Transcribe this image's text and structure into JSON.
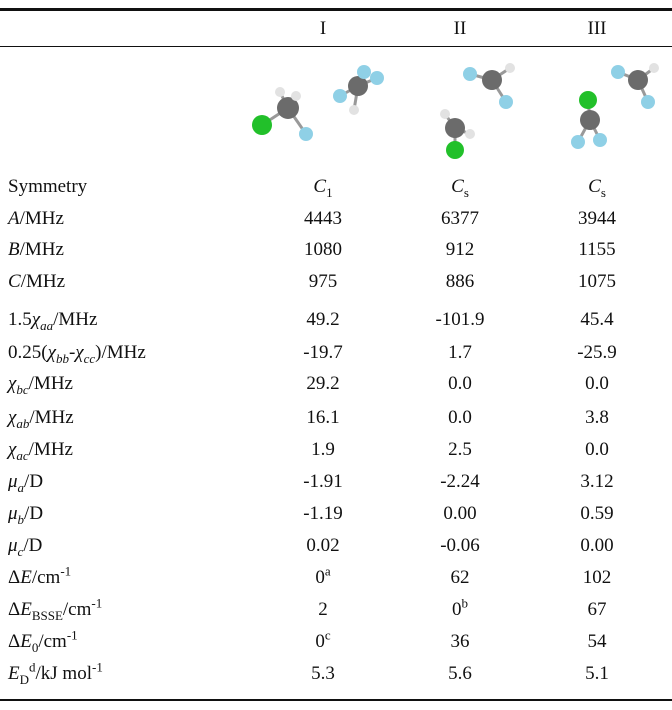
{
  "table": {
    "header": [
      "I",
      "II",
      "III"
    ],
    "rows": [
      {
        "label": [
          "Symmetry"
        ],
        "cells": [
          [
            "C",
            "1"
          ],
          [
            "C",
            "s"
          ],
          [
            "C",
            "s"
          ]
        ]
      },
      {
        "label": [
          "A",
          "/MHz"
        ],
        "cells": [
          "4443",
          "6377",
          "3944"
        ]
      },
      {
        "label": [
          "B",
          "/MHz"
        ],
        "cells": [
          "1080",
          "912",
          "1155"
        ]
      },
      {
        "label": [
          "C",
          "/MHz"
        ],
        "cells": [
          "975",
          "886",
          "1075"
        ]
      },
      {
        "label": [
          "1.5",
          "χ",
          "aa",
          "/MHz"
        ],
        "cells": [
          "49.2",
          "-101.9",
          "45.4"
        ]
      },
      {
        "label": [
          "0.25(",
          "χ",
          "bb",
          "-",
          "χ",
          "cc",
          ")/MHz"
        ],
        "cells": [
          "-19.7",
          "1.7",
          "-25.9"
        ]
      },
      {
        "label": [
          "χ",
          "bc",
          "/MHz"
        ],
        "cells": [
          "29.2",
          "0.0",
          "0.0"
        ]
      },
      {
        "label": [
          "χ",
          "ab",
          "/MHz"
        ],
        "cells": [
          "16.1",
          "0.0",
          "3.8"
        ]
      },
      {
        "label": [
          "χ",
          "ac",
          "/MHz"
        ],
        "cells": [
          "1.9",
          "2.5",
          "0.0"
        ]
      },
      {
        "label": [
          "μ",
          "a",
          "/D"
        ],
        "cells": [
          "-1.91",
          "-2.24",
          "3.12"
        ]
      },
      {
        "label": [
          "μ",
          "b",
          "/D"
        ],
        "cells": [
          "-1.19",
          "0.00",
          "0.59"
        ]
      },
      {
        "label": [
          "μ",
          "c",
          "/D"
        ],
        "cells": [
          "0.02",
          "-0.06",
          "0.00"
        ]
      },
      {
        "label": [
          "Δ",
          "E",
          "/cm",
          "-1"
        ],
        "cells": [
          [
            "0",
            "a"
          ],
          "62",
          "102"
        ]
      },
      {
        "label": [
          "Δ",
          "E",
          "BSSE",
          "/cm",
          "-1"
        ],
        "cells": [
          "2",
          [
            "0",
            "b"
          ],
          "67"
        ]
      },
      {
        "label": [
          "Δ",
          "E",
          "0",
          "/cm",
          "-1"
        ],
        "cells": [
          [
            "0",
            "c"
          ],
          "36",
          "54"
        ]
      },
      {
        "label": [
          "E",
          "D",
          "d",
          "/kJ mol",
          "-1"
        ],
        "cells": [
          "5.3",
          "5.6",
          "5.1"
        ]
      }
    ]
  }
}
